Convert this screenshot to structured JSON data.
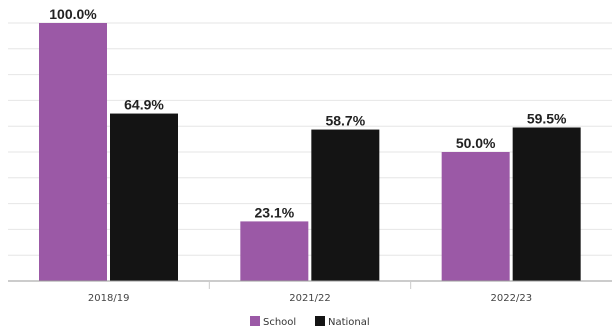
{
  "chart_data": {
    "type": "bar",
    "categories": [
      "2018/19",
      "2021/22",
      "2022/23"
    ],
    "series": [
      {
        "name": "School",
        "values": [
          100.0,
          23.1,
          50.0
        ],
        "labels": [
          "100.0%",
          "23.1%",
          "50.0%"
        ],
        "color": "#9b59a6"
      },
      {
        "name": "National",
        "values": [
          64.9,
          58.7,
          59.5
        ],
        "labels": [
          "64.9%",
          "58.7%",
          "59.5%"
        ],
        "color": "#141414"
      }
    ],
    "title": "",
    "xlabel": "",
    "ylabel": "",
    "ylim": [
      0,
      100
    ],
    "grid": true,
    "legend": "bottom"
  }
}
